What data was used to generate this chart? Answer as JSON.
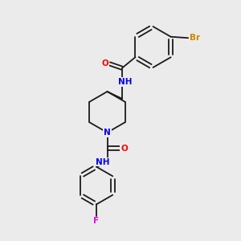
{
  "background_color": "#ebebeb",
  "bond_color": "#1a1a1a",
  "atom_colors": {
    "N": "#0000ee",
    "O": "#ff0000",
    "Br": "#cc8800",
    "F": "#ee00ee"
  },
  "bond_width": 1.3,
  "font_size": 7.5
}
